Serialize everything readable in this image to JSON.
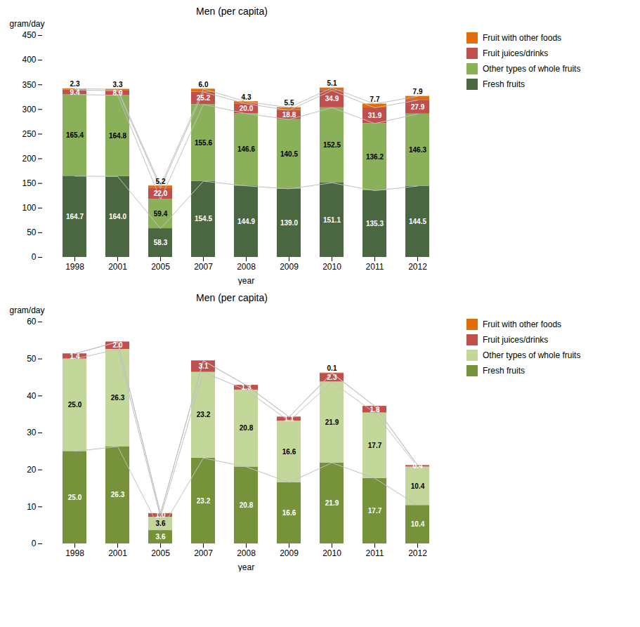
{
  "chart_data": [
    {
      "type": "bar",
      "title": "Men (per capita)",
      "xlabel": "year",
      "ylabel": "gram/day",
      "categories": [
        "1998",
        "2001",
        "2005",
        "2007",
        "2008",
        "2009",
        "2010",
        "2011",
        "2012"
      ],
      "stacked": true,
      "data_labels": true,
      "legend": "right",
      "grid": false,
      "ylim": [
        0,
        450
      ],
      "yticks": [
        0,
        50,
        100,
        150,
        200,
        250,
        300,
        350,
        400,
        450
      ],
      "series": [
        {
          "name": "Fresh fruits",
          "color": "#4a6741",
          "values": [
            164.7,
            164.0,
            58.3,
            154.5,
            144.9,
            139.0,
            151.1,
            135.3,
            144.5
          ],
          "value_labels": [
            "164.7",
            "164.0",
            "58.3",
            "154.5",
            "144.9",
            "139.0",
            "151.1",
            "135.3",
            "144.5"
          ]
        },
        {
          "name": "Other types of whole fruits",
          "color": "#8ab05a",
          "values": [
            165.4,
            164.8,
            59.4,
            155.6,
            146.6,
            140.5,
            152.5,
            136.2,
            146.3
          ],
          "value_labels": [
            "165.4",
            "164.8",
            "59.4",
            "155.6",
            "146.6",
            "140.5",
            "152.5",
            "136.2",
            "146.3"
          ]
        },
        {
          "name": "Fruit juices/drinks",
          "color": "#c0504d",
          "values": [
            9.4,
            8.9,
            22.0,
            25.2,
            20.0,
            18.8,
            34.9,
            31.9,
            27.9
          ],
          "value_labels": [
            "9.4",
            "8.9",
            "22.0",
            "25.2",
            "20.0",
            "18.8",
            "34.9",
            "31.9",
            "27.9"
          ]
        },
        {
          "name": "Fruit with other foods",
          "color": "#e26b0a",
          "values": [
            2.3,
            3.3,
            5.2,
            6.0,
            4.3,
            5.5,
            5.1,
            7.7,
            7.9
          ],
          "value_labels": [
            "2.3",
            "3.3",
            "5.2",
            "6.0",
            "4.3",
            "5.5",
            "5.1",
            "7.7",
            "7.9"
          ]
        }
      ]
    },
    {
      "type": "bar",
      "title": "Men (per capita)",
      "xlabel": "year",
      "ylabel": "gram/day",
      "categories": [
        "1998",
        "2001",
        "2005",
        "2007",
        "2008",
        "2009",
        "2010",
        "2011",
        "2012"
      ],
      "stacked": true,
      "data_labels": true,
      "legend": "right",
      "grid": false,
      "ylim": [
        0,
        60
      ],
      "yticks": [
        0,
        10,
        20,
        30,
        40,
        50,
        60
      ],
      "series": [
        {
          "name": "Fresh fruits",
          "color": "#76933c",
          "values": [
            25.0,
            26.3,
            3.6,
            23.2,
            20.8,
            16.6,
            21.9,
            17.7,
            10.4
          ],
          "value_labels": [
            "25.0",
            "26.3",
            "3.6",
            "23.2",
            "20.8",
            "16.6",
            "21.9",
            "17.7",
            "10.4"
          ]
        },
        {
          "name": "Other types of whole fruits",
          "color": "#c4d79b",
          "values": [
            25.0,
            26.3,
            3.6,
            23.2,
            20.8,
            16.6,
            21.9,
            17.7,
            10.4
          ],
          "value_labels": [
            "25.0",
            "26.3",
            "3.6",
            "23.2",
            "20.8",
            "16.6",
            "21.9",
            "17.7",
            "10.4"
          ]
        },
        {
          "name": "Fruit juices/drinks",
          "color": "#c0504d",
          "values": [
            1.4,
            2.0,
            1.0,
            3.1,
            1.3,
            1.1,
            2.3,
            1.8,
            0.4
          ],
          "value_labels": [
            "1.4",
            "2.0",
            "1.0",
            "3.1",
            "1.3",
            "1.1",
            "2.3",
            "1.8",
            "0.4"
          ]
        },
        {
          "name": "Fruit with other foods",
          "color": "#e26b0a",
          "values": [
            0.0,
            0.0,
            0.0,
            0.0,
            0.0,
            0.0,
            0.1,
            0.0,
            0.0
          ],
          "value_labels": [
            null,
            null,
            null,
            null,
            null,
            null,
            "0.1",
            null,
            null
          ]
        }
      ]
    }
  ]
}
